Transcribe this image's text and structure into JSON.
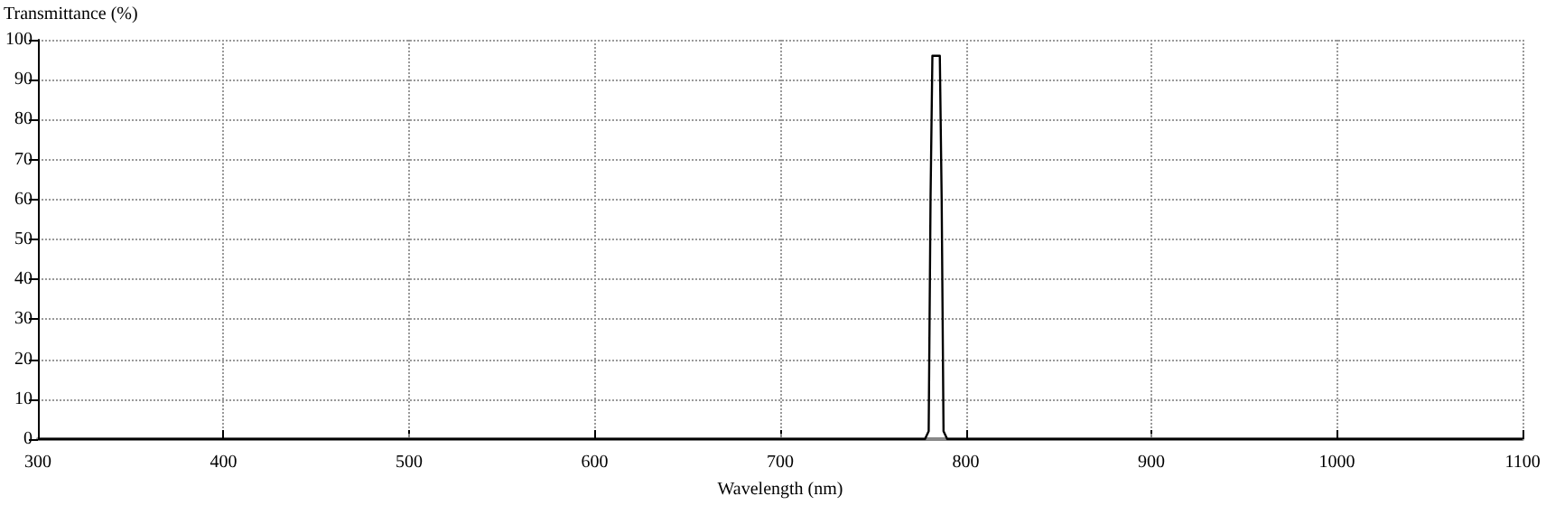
{
  "chart_data": {
    "type": "line",
    "xlabel": "Wavelength (nm)",
    "ylabel": "Transmittance (%)",
    "x": [
      300,
      778,
      780,
      781,
      782,
      786,
      787,
      788,
      790,
      1100
    ],
    "series": [
      {
        "color": "#000000",
        "values": [
          0,
          0,
          2,
          60,
          96,
          96,
          60,
          2,
          0,
          0
        ]
      }
    ],
    "xlim": [
      300,
      1100
    ],
    "xticks": [
      300,
      400,
      500,
      600,
      700,
      800,
      900,
      1000,
      1100
    ],
    "ylim": [
      0,
      100
    ],
    "yticks": [
      0,
      10,
      20,
      30,
      40,
      50,
      60,
      70,
      80,
      90,
      100
    ],
    "grid": true,
    "marker": "none",
    "line_style": "solid"
  }
}
